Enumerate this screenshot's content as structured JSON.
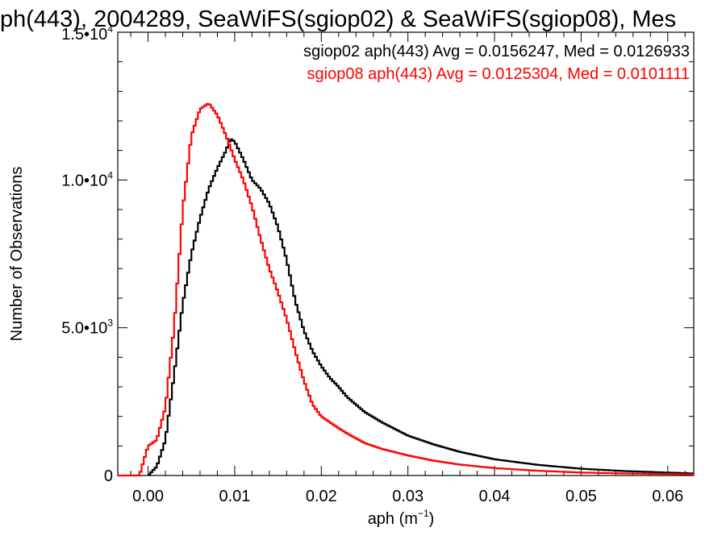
{
  "chart_data": {
    "type": "line",
    "title": "ph(443), 2004289, SeaWiFS(sgiop02) & SeaWiFS(sgiop08), Mes",
    "xlabel": "aph (m⁻¹)",
    "xlabel_base": "aph (m",
    "xlabel_sup": "−1",
    "xlabel_close": ")",
    "ylabel": "Number of Observations",
    "xlim": [
      -0.0035,
      0.063
    ],
    "ylim": [
      0,
      15000
    ],
    "x_ticks": [
      {
        "value": 0.0,
        "label": "0.00"
      },
      {
        "value": 0.01,
        "label": "0.01"
      },
      {
        "value": 0.02,
        "label": "0.02"
      },
      {
        "value": 0.03,
        "label": "0.03"
      },
      {
        "value": 0.04,
        "label": "0.04"
      },
      {
        "value": 0.05,
        "label": "0.05"
      },
      {
        "value": 0.06,
        "label": "0.06"
      }
    ],
    "y_ticks": [
      {
        "value": 0,
        "label": "0",
        "exp": ""
      },
      {
        "value": 5000,
        "label": "5.0•10",
        "exp": "3"
      },
      {
        "value": 10000,
        "label": "1.0•10",
        "exp": "4"
      },
      {
        "value": 15000,
        "label": "1.5•10",
        "exp": "4"
      }
    ],
    "legend_position": "top-right",
    "series": [
      {
        "name": "sgiop02 aph(443) Avg = 0.0156247, Med = 0.0126933",
        "color": "#000000",
        "x": [
          0.0,
          0.001,
          0.002,
          0.003,
          0.004,
          0.005,
          0.006,
          0.007,
          0.008,
          0.009,
          0.0095,
          0.01,
          0.011,
          0.012,
          0.013,
          0.014,
          0.015,
          0.016,
          0.017,
          0.018,
          0.019,
          0.02,
          0.021,
          0.022,
          0.023,
          0.025,
          0.027,
          0.03,
          0.033,
          0.036,
          0.04,
          0.045,
          0.05,
          0.055,
          0.06,
          0.063
        ],
        "y": [
          0,
          300,
          1200,
          3400,
          5800,
          7500,
          8700,
          9700,
          10400,
          11000,
          11400,
          11300,
          10700,
          10000,
          9700,
          9200,
          8400,
          7300,
          5900,
          4900,
          4200,
          3700,
          3300,
          3000,
          2650,
          2150,
          1800,
          1350,
          1050,
          800,
          550,
          360,
          230,
          150,
          100,
          70
        ]
      },
      {
        "name": "sgiop08 aph(443) Avg = 0.0125304, Med = 0.0101111",
        "color": "#ff0000",
        "x": [
          -0.0035,
          -0.001,
          -0.0003,
          0.0,
          0.001,
          0.002,
          0.003,
          0.004,
          0.005,
          0.006,
          0.007,
          0.008,
          0.009,
          0.01,
          0.011,
          0.012,
          0.013,
          0.014,
          0.015,
          0.016,
          0.017,
          0.018,
          0.019,
          0.02,
          0.021,
          0.022,
          0.023,
          0.025,
          0.027,
          0.03,
          0.033,
          0.036,
          0.04,
          0.045,
          0.05,
          0.055,
          0.06,
          0.063
        ],
        "y": [
          0,
          0,
          700,
          1000,
          1200,
          2300,
          5000,
          9000,
          11500,
          12400,
          12600,
          12200,
          11500,
          10700,
          10000,
          9100,
          8000,
          7000,
          6200,
          5300,
          4200,
          3200,
          2400,
          2000,
          1800,
          1600,
          1420,
          1100,
          900,
          680,
          500,
          370,
          250,
          160,
          100,
          70,
          50,
          40
        ]
      }
    ]
  }
}
